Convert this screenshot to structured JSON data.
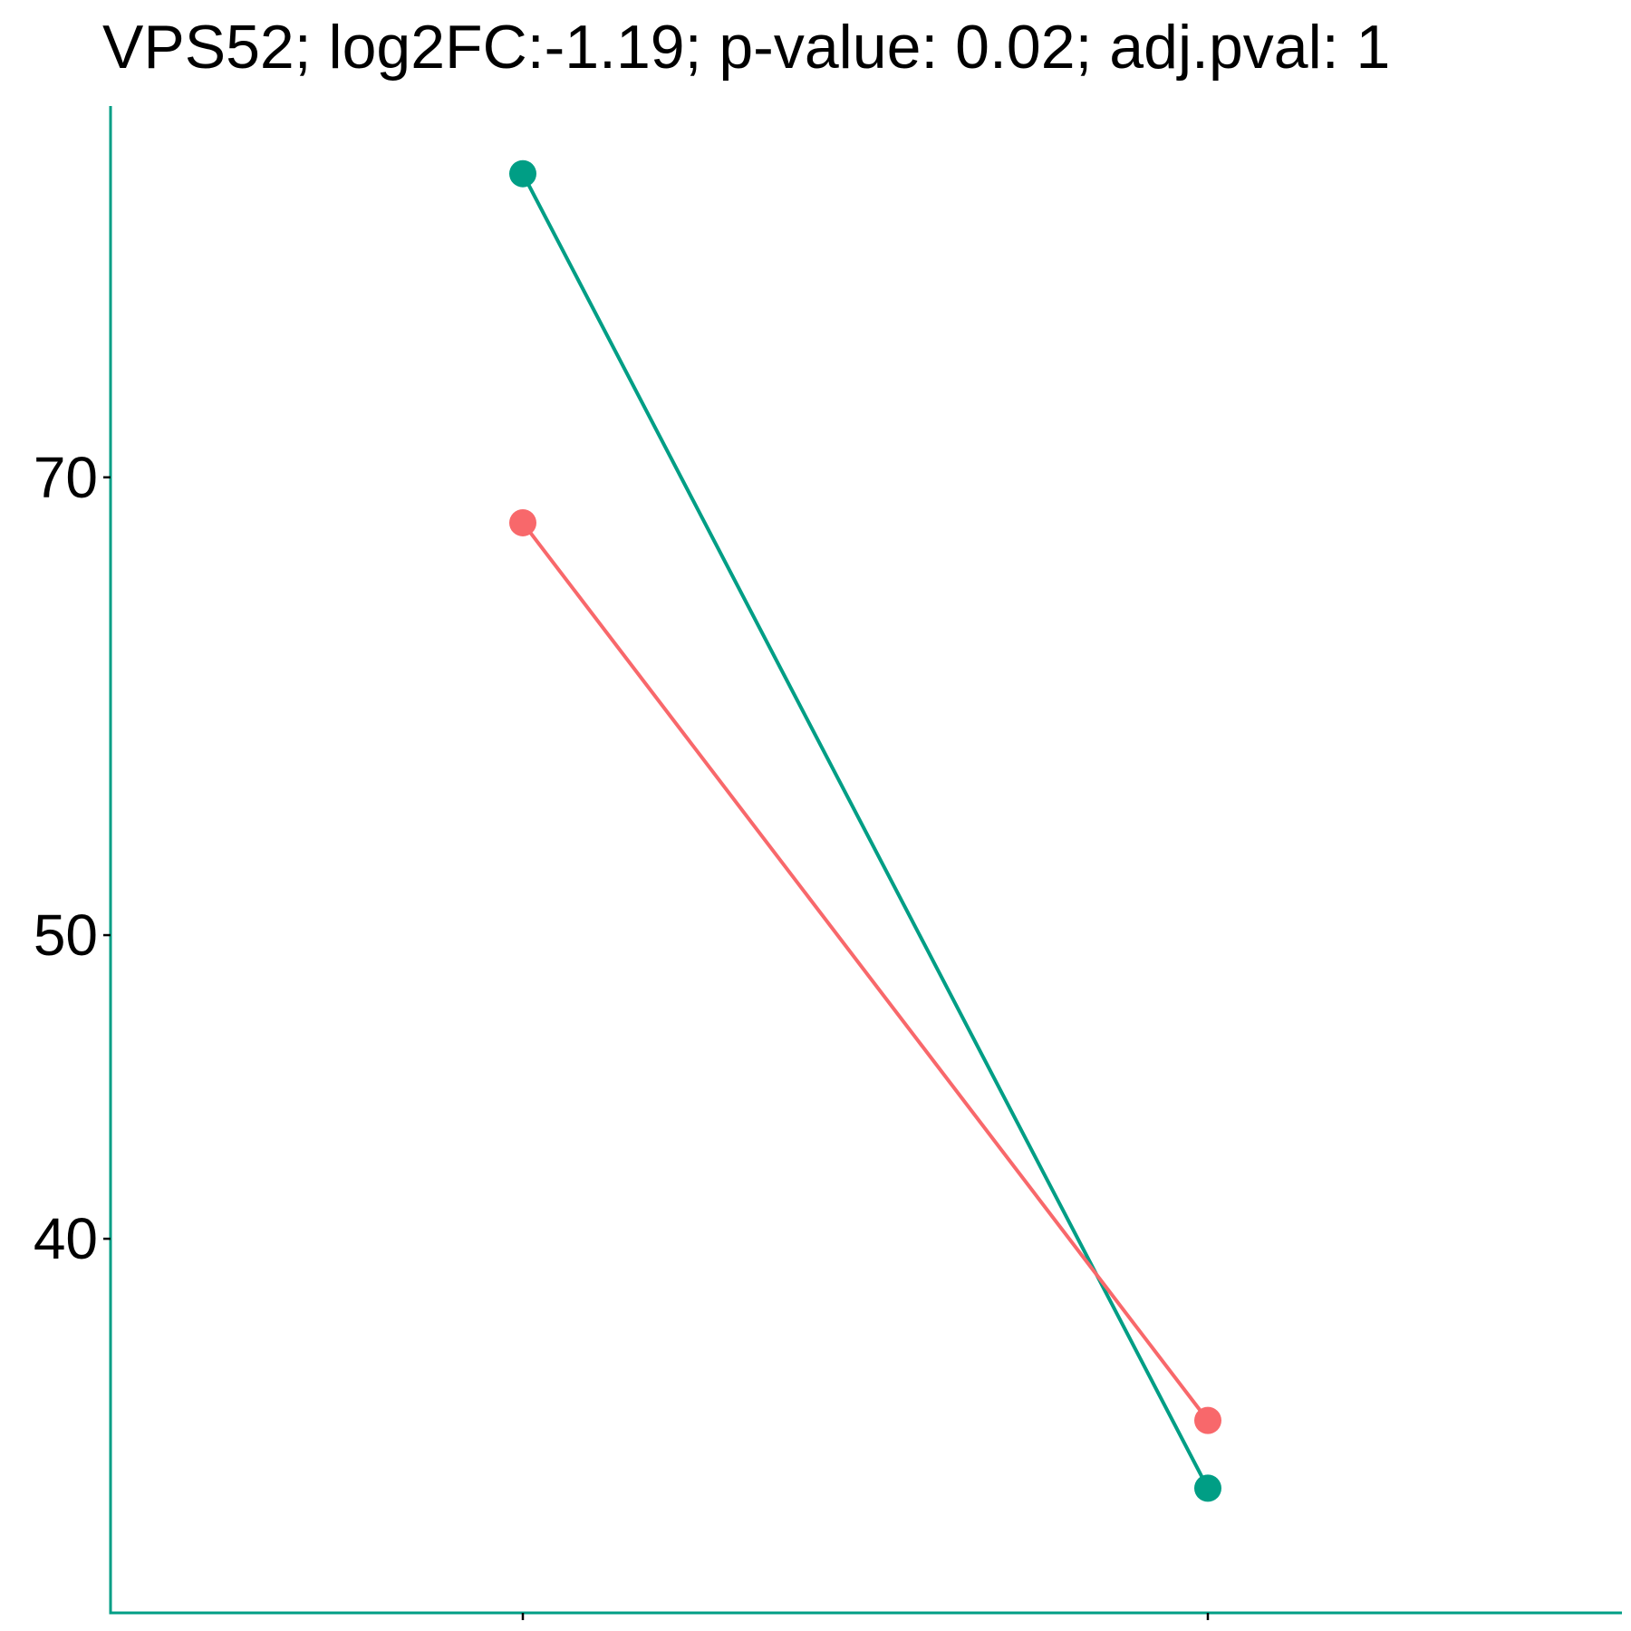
{
  "chart_data": {
    "type": "line",
    "title": "VPS52; log2FC:-1.19; p-value: 0.02; adj.pval: 1",
    "xlabel": "",
    "ylabel": "",
    "y_scale": "log2",
    "y_ticks": [
      40,
      50,
      70
    ],
    "ylim": [
      31.5,
      93
    ],
    "categories": [
      "",
      ""
    ],
    "grid": false,
    "legend": "none",
    "series": [
      {
        "values": [
          87.5,
          33.3
        ],
        "color": "#009E85"
      },
      {
        "values": [
          67.7,
          35.0
        ],
        "color": "#F8686B"
      }
    ]
  },
  "colors": {
    "axis": "#009E85",
    "ticks": "#000000",
    "background": "#ffffff"
  }
}
